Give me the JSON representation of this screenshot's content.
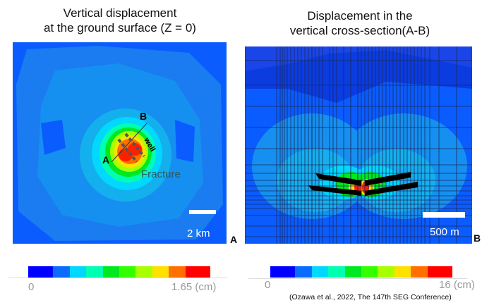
{
  "left": {
    "title_line1": "Vertical displacement",
    "title_line2": "at the ground surface (Z = 0)",
    "label_b": "B",
    "label_a": "A",
    "well_label": "well",
    "fracture_label": "Fracture",
    "scale_label": "2 km",
    "panel_letter": "A",
    "colorbar": {
      "min": "0",
      "max": "1.65 (cm)"
    }
  },
  "right": {
    "title_line1": "Displacement in the",
    "title_line2": "vertical cross-section(A-B)",
    "scale_label": "500 m",
    "panel_letter": "B",
    "colorbar": {
      "min": "0",
      "max": "16 (cm)"
    }
  },
  "colormap": [
    "#0000ff",
    "#0a6cff",
    "#00d8ff",
    "#00ffb0",
    "#00e820",
    "#33ff00",
    "#a8ff00",
    "#ffe000",
    "#ff7000",
    "#ff0000"
  ],
  "citation": "(Ozawa et al., 2022, The 147th SEG Conference)"
}
